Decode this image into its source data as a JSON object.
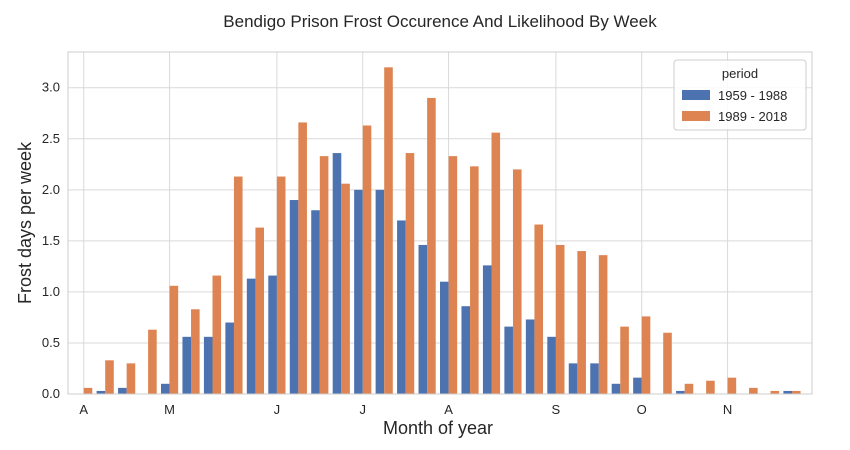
{
  "chart_data": {
    "type": "bar",
    "title": "Bendigo Prison Frost Occurence And Likelihood By Week",
    "xlabel": "Month of year",
    "ylabel": "Frost days per week",
    "ylim": [
      0,
      3.35
    ],
    "yticks": [
      "0.0",
      "0.5",
      "1.0",
      "1.5",
      "2.0",
      "2.5",
      "3.0"
    ],
    "ytick_values": [
      0,
      0.5,
      1.0,
      1.5,
      2.0,
      2.5,
      3.0
    ],
    "grid": true,
    "legend": {
      "title": "period",
      "placement": "top-right"
    },
    "month_ticks": [
      {
        "label": "A",
        "week": 0
      },
      {
        "label": "M",
        "week": 4
      },
      {
        "label": "J",
        "week": 9
      },
      {
        "label": "J",
        "week": 13
      },
      {
        "label": "A",
        "week": 17
      },
      {
        "label": "S",
        "week": 22
      },
      {
        "label": "O",
        "week": 26
      },
      {
        "label": "N",
        "week": 30
      }
    ],
    "series": [
      {
        "name": "1959 - 1988",
        "color": "#4c72b0",
        "values": [
          0.0,
          0.03,
          0.06,
          0.0,
          0.1,
          0.56,
          0.56,
          0.7,
          1.13,
          1.16,
          1.9,
          1.8,
          2.36,
          2.0,
          2.0,
          1.7,
          1.46,
          1.1,
          0.86,
          1.26,
          0.66,
          0.73,
          0.56,
          0.3,
          0.3,
          0.1,
          0.16,
          0.0,
          0.03,
          0.0,
          0.0,
          0.0,
          0.0,
          0.03
        ]
      },
      {
        "name": "1989 - 2018",
        "color": "#dd8452",
        "values": [
          0.06,
          0.33,
          0.3,
          0.63,
          1.06,
          0.83,
          1.16,
          2.13,
          1.63,
          2.13,
          2.66,
          2.33,
          2.06,
          2.63,
          3.2,
          2.36,
          2.9,
          2.33,
          2.23,
          2.56,
          2.2,
          1.66,
          1.46,
          1.4,
          1.36,
          0.66,
          0.76,
          0.6,
          0.1,
          0.13,
          0.16,
          0.06,
          0.03,
          0.03
        ]
      }
    ]
  }
}
